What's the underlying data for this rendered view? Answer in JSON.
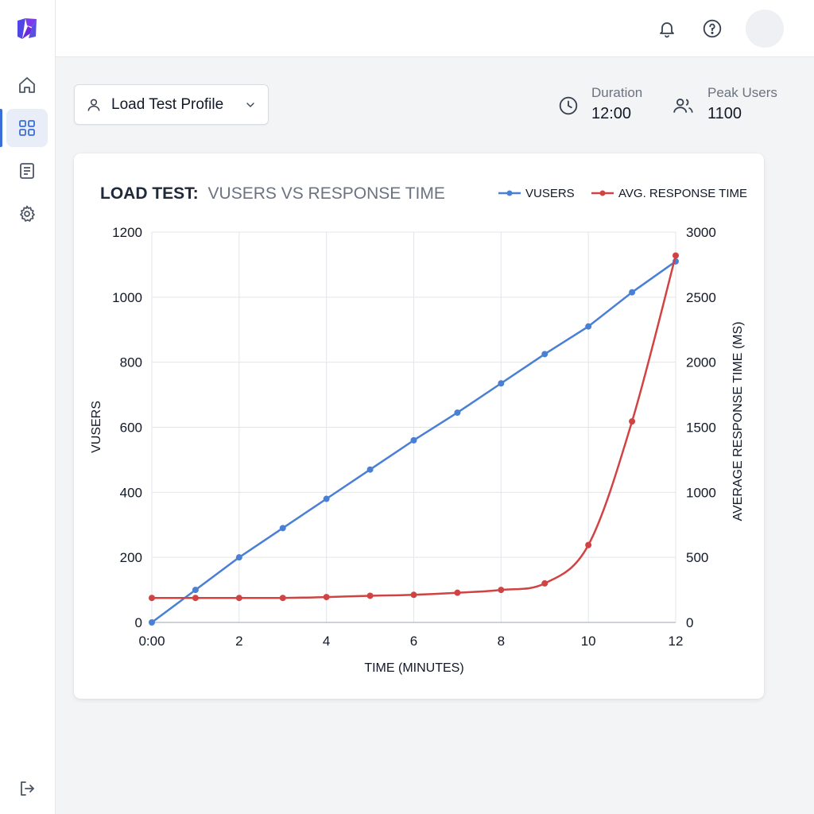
{
  "profile_selector": {
    "label": "Load Test Profile"
  },
  "stats": {
    "duration": {
      "label": "Duration",
      "value": "12:00"
    },
    "peak_users": {
      "label": "Peak Users",
      "value": "1100"
    }
  },
  "icons": {
    "sidebar": [
      "home-icon",
      "dashboard-icon",
      "document-icon",
      "settings-icon",
      "logout-icon"
    ],
    "topbar": [
      "bell-icon",
      "help-icon"
    ]
  },
  "colors": {
    "accent": "#3b6fd8",
    "vusers": "#4a7fd6",
    "response": "#d14343"
  },
  "chart_data": {
    "type": "line",
    "title_prefix": "LOAD TEST:",
    "title_rest": "VUSERS VS RESPONSE TIME",
    "xlabel": "TIME (MINUTES)",
    "ylabel": "VUSERS",
    "y2label": "AVERAGE RESPONSE TIME (MS)",
    "xlim": [
      0,
      12
    ],
    "ylim": [
      0,
      1200
    ],
    "y2lim": [
      0,
      3000
    ],
    "x_ticks": [
      {
        "value": 0,
        "label": "0:00"
      },
      {
        "value": 2,
        "label": "2"
      },
      {
        "value": 4,
        "label": "4"
      },
      {
        "value": 6,
        "label": "6"
      },
      {
        "value": 8,
        "label": "8"
      },
      {
        "value": 10,
        "label": "10"
      },
      {
        "value": 12,
        "label": "12"
      }
    ],
    "y_ticks": [
      0,
      200,
      400,
      600,
      800,
      1000,
      1200
    ],
    "y2_ticks": [
      0,
      500,
      1000,
      1500,
      2000,
      2500,
      3000
    ],
    "grid": true,
    "legend_position": "top-right",
    "x": [
      0,
      1,
      2,
      3,
      4,
      5,
      6,
      7,
      8,
      9,
      10,
      11,
      12
    ],
    "series": [
      {
        "name": "VUSERS",
        "axis": "left",
        "color": "#4a7fd6",
        "values": [
          0,
          100,
          200,
          290,
          380,
          470,
          560,
          645,
          735,
          825,
          910,
          1015,
          1110
        ]
      },
      {
        "name": "AVG. RESPONSE TIME",
        "axis": "right",
        "color": "#d14343",
        "values": [
          188,
          188,
          188,
          188,
          195,
          205,
          212,
          228,
          250,
          300,
          595,
          1545,
          2820
        ]
      }
    ]
  }
}
